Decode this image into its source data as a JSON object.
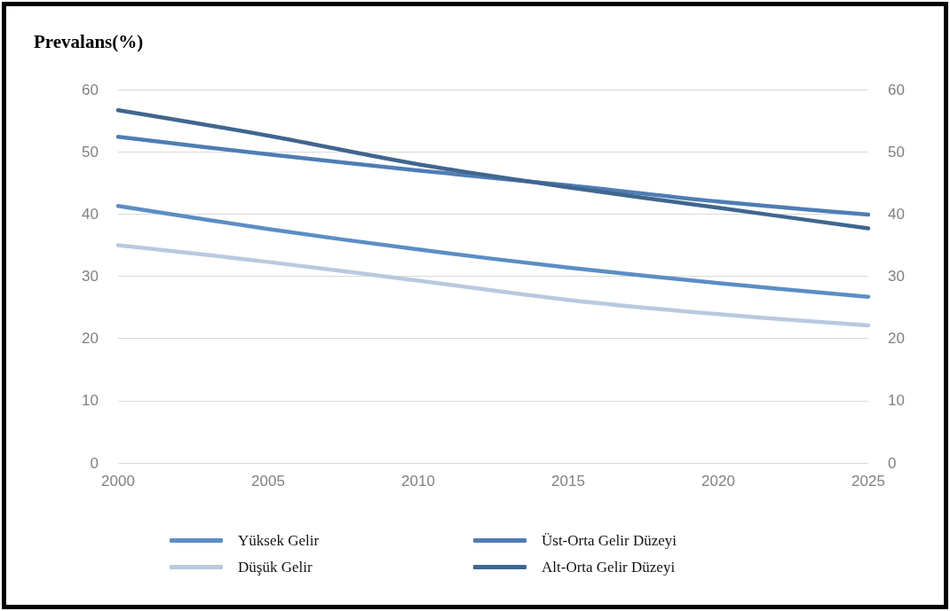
{
  "chart_data": {
    "type": "line",
    "ylabel": "Prevalans(%)",
    "x": [
      2000,
      2005,
      2010,
      2015,
      2020,
      2025
    ],
    "series": [
      {
        "name": "Yüksek Gelir",
        "color": "#5b8ec4",
        "values": [
          41.3,
          37.6,
          34.3,
          31.4,
          28.9,
          26.7
        ]
      },
      {
        "name": "Üst-Orta Gelir Düzeyi",
        "color": "#4f7db4",
        "values": [
          52.4,
          49.6,
          47.0,
          44.6,
          42.0,
          39.9
        ]
      },
      {
        "name": "Düşük Gelir",
        "color": "#b9c9df",
        "values": [
          35.0,
          32.3,
          29.3,
          26.2,
          23.9,
          22.1
        ]
      },
      {
        "name": "Alt-Orta Gelir Düzeyi",
        "color": "#40668f",
        "values": [
          56.7,
          52.6,
          48.0,
          44.3,
          41.0,
          37.7
        ]
      }
    ],
    "xlim": [
      2000,
      2025
    ],
    "xticks": [
      2000,
      2005,
      2010,
      2015,
      2020,
      2025
    ],
    "ylim": [
      0,
      60
    ],
    "yticks": [
      0,
      10,
      20,
      30,
      40,
      50,
      60
    ],
    "y2lim": [
      0,
      60
    ],
    "y2ticks": [
      0,
      10,
      20,
      30,
      40,
      50,
      60
    ],
    "grid": "y",
    "legend": "bottom",
    "marker": "none",
    "line_style": "solid"
  }
}
